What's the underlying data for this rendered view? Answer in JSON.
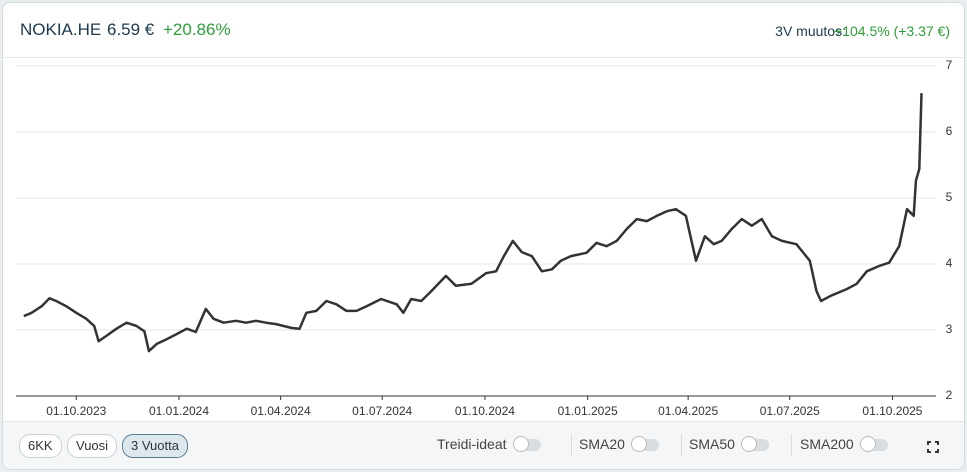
{
  "header": {
    "symbol": "NOKIA.HE",
    "price": "6.59 €",
    "change": "+20.86%",
    "period_label": "3V muutos:",
    "period_change": "+104.5% (+3.37 €)"
  },
  "controls": {
    "ranges": [
      "6KK",
      "Vuosi",
      "3 Vuotta"
    ],
    "toggles": [
      "Treidi-ideat",
      "SMA20",
      "SMA50",
      "SMA200"
    ]
  },
  "chart_data": {
    "type": "line",
    "grid": true,
    "x": [
      "2023-08-15",
      "2023-08-22",
      "2023-08-31",
      "2023-09-07",
      "2023-09-13",
      "2023-09-22",
      "2023-10-01",
      "2023-10-10",
      "2023-10-17",
      "2023-10-21",
      "2023-10-28",
      "2023-11-06",
      "2023-11-15",
      "2023-11-24",
      "2023-12-01",
      "2023-12-05",
      "2023-12-12",
      "2023-12-21",
      "2023-12-30",
      "2024-01-08",
      "2024-01-16",
      "2024-01-25",
      "2024-02-01",
      "2024-02-10",
      "2024-02-21",
      "2024-03-01",
      "2024-03-10",
      "2024-03-19",
      "2024-03-28",
      "2024-04-11",
      "2024-04-18",
      "2024-04-24",
      "2024-05-03",
      "2024-05-12",
      "2024-05-21",
      "2024-05-30",
      "2024-06-08",
      "2024-06-17",
      "2024-06-30",
      "2024-07-14",
      "2024-07-20",
      "2024-07-27",
      "2024-08-05",
      "2024-08-14",
      "2024-08-27",
      "2024-09-05",
      "2024-09-19",
      "2024-10-02",
      "2024-10-11",
      "2024-10-18",
      "2024-10-26",
      "2024-11-03",
      "2024-11-12",
      "2024-11-21",
      "2024-11-30",
      "2024-12-08",
      "2024-12-17",
      "2024-12-31",
      "2025-01-09",
      "2025-01-18",
      "2025-01-27",
      "2025-02-05",
      "2025-02-14",
      "2025-02-23",
      "2025-03-04",
      "2025-03-13",
      "2025-03-21",
      "2025-03-30",
      "2025-04-04",
      "2025-04-08",
      "2025-04-16",
      "2025-04-24",
      "2025-05-01",
      "2025-05-10",
      "2025-05-19",
      "2025-05-28",
      "2025-06-06",
      "2025-06-15",
      "2025-06-24",
      "2025-07-07",
      "2025-07-19",
      "2025-07-25",
      "2025-07-29",
      "2025-08-07",
      "2025-08-21",
      "2025-08-30",
      "2025-09-08",
      "2025-09-19",
      "2025-09-28",
      "2025-10-07",
      "2025-10-14",
      "2025-10-20",
      "2025-10-22",
      "2025-10-25",
      "2025-10-27"
    ],
    "series": [
      {
        "name": "NOKIA.HE",
        "color": "#333333",
        "values": [
          3.21,
          3.26,
          3.36,
          3.48,
          3.44,
          3.36,
          3.26,
          3.17,
          3.06,
          2.83,
          2.91,
          3.02,
          3.11,
          3.06,
          2.98,
          2.68,
          2.79,
          2.86,
          2.94,
          3.02,
          2.97,
          3.32,
          3.17,
          3.11,
          3.14,
          3.11,
          3.14,
          3.11,
          3.09,
          3.03,
          3.02,
          3.26,
          3.29,
          3.44,
          3.39,
          3.29,
          3.29,
          3.36,
          3.47,
          3.39,
          3.26,
          3.47,
          3.44,
          3.59,
          3.82,
          3.67,
          3.7,
          3.86,
          3.89,
          4.12,
          4.35,
          4.18,
          4.12,
          3.89,
          3.92,
          4.05,
          4.12,
          4.17,
          4.32,
          4.27,
          4.35,
          4.53,
          4.68,
          4.65,
          4.73,
          4.8,
          4.83,
          4.73,
          4.35,
          4.05,
          4.42,
          4.3,
          4.35,
          4.53,
          4.68,
          4.58,
          4.68,
          4.42,
          4.35,
          4.3,
          4.05,
          3.59,
          3.44,
          3.52,
          3.62,
          3.7,
          3.89,
          3.97,
          4.02,
          4.27,
          4.83,
          4.73,
          5.26,
          5.44,
          6.59
        ]
      }
    ],
    "xlim": [
      "2023-08-08",
      "2025-11-09"
    ],
    "xticks": [
      {
        "value": "2023-10-01",
        "label": "01.10.2023"
      },
      {
        "value": "2024-01-01",
        "label": "01.01.2024"
      },
      {
        "value": "2024-04-01",
        "label": "01.04.2024"
      },
      {
        "value": "2024-07-01",
        "label": "01.07.2024"
      },
      {
        "value": "2024-10-01",
        "label": "01.10.2024"
      },
      {
        "value": "2025-01-01",
        "label": "01.01.2025"
      },
      {
        "value": "2025-04-01",
        "label": "01.04.2025"
      },
      {
        "value": "2025-07-01",
        "label": "01.07.2025"
      },
      {
        "value": "2025-10-01",
        "label": "01.10.2025"
      }
    ],
    "ylim": [
      2,
      7
    ],
    "yticks": [
      2,
      3,
      4,
      5,
      6,
      7
    ]
  }
}
